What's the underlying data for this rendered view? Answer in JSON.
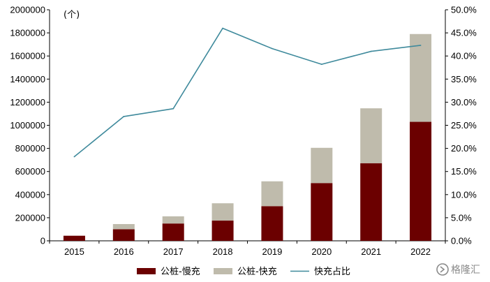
{
  "chart_data": {
    "type": "bar",
    "stacked": true,
    "categories": [
      "2015",
      "2016",
      "2017",
      "2018",
      "2019",
      "2020",
      "2021",
      "2022"
    ],
    "series": [
      {
        "name": "公桩-慢充",
        "kind": "bar",
        "axis": "left",
        "color": "#6b0000",
        "values": [
          44000,
          100000,
          150000,
          175000,
          300000,
          500000,
          672000,
          1030000
        ]
      },
      {
        "name": "公桩-快充",
        "kind": "bar",
        "axis": "left",
        "color": "#bfbbac",
        "values": [
          0,
          45000,
          62000,
          150000,
          215000,
          305000,
          475000,
          760000
        ]
      },
      {
        "name": "快充占比",
        "kind": "line",
        "axis": "right",
        "color": "#3f8a9c",
        "values": [
          18.2,
          26.9,
          28.6,
          46.0,
          41.6,
          38.2,
          41.0,
          42.3
        ]
      }
    ],
    "unit_label": "(个)",
    "y_left": {
      "min": 0,
      "max": 2000000,
      "step": 200000,
      "ticks": [
        "0",
        "200000",
        "400000",
        "600000",
        "800000",
        "1000000",
        "1200000",
        "1400000",
        "1600000",
        "1800000",
        "2000000"
      ]
    },
    "y_right": {
      "min": 0,
      "max": 50,
      "step": 5,
      "ticks": [
        "0.0%",
        "5.0%",
        "10.0%",
        "15.0%",
        "20.0%",
        "25.0%",
        "30.0%",
        "35.0%",
        "40.0%",
        "45.0%",
        "50.0%"
      ]
    },
    "grid": false,
    "legend_position": "bottom-center"
  },
  "watermark": {
    "text": "格隆汇"
  }
}
